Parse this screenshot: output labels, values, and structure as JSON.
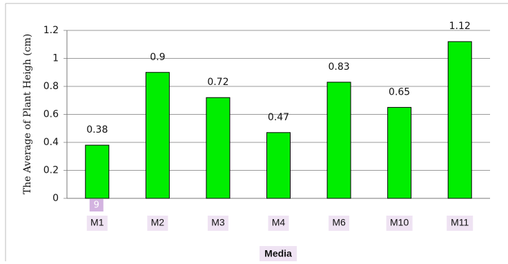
{
  "chart_data": {
    "type": "bar",
    "y_axis_label": "The Average of Plant Heigh (cm)",
    "x_axis_label": "Media",
    "badge": "9",
    "categories": [
      "M1",
      "M2",
      "M3",
      "M4",
      "M6",
      "M10",
      "M11"
    ],
    "values": [
      0.38,
      0.9,
      0.72,
      0.47,
      0.83,
      0.65,
      1.12
    ],
    "color": "#00ee00",
    "ylim": [
      0,
      1.2
    ],
    "yticks": [
      0,
      0.2,
      0.4,
      0.6,
      0.8,
      1,
      1.2
    ],
    "grid": true
  }
}
